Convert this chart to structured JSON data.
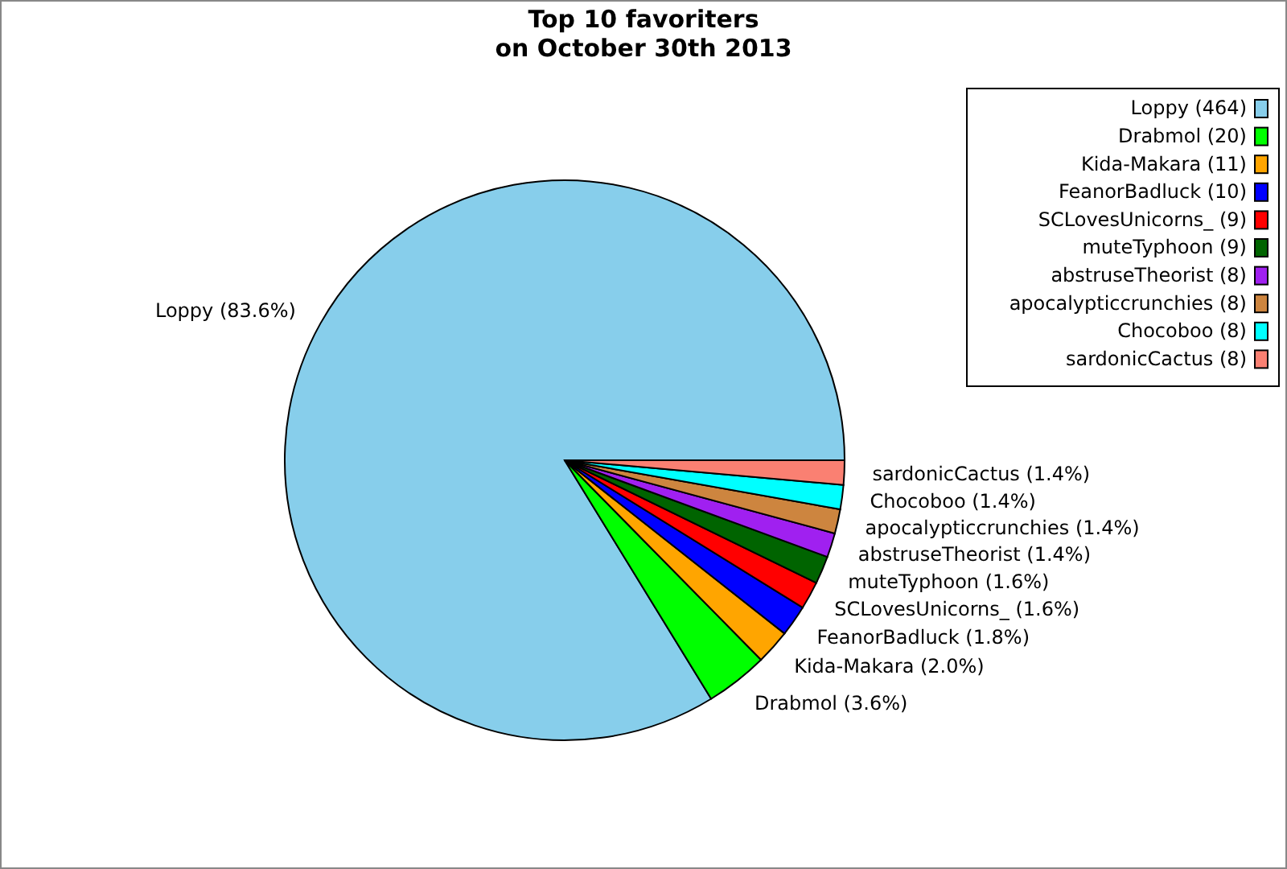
{
  "chart_data": {
    "type": "pie",
    "title": "Top 10 favoriters\non October 30th 2013",
    "categories": [
      "Loppy (464)",
      "Drabmol (20)",
      "Kida-Makara (11)",
      "FeanorBadluck (10)",
      "SCLovesUnicorns_ (9)",
      "muteTyphoon (9)",
      "abstruseTheorist (8)",
      "apocalypticcrunchies (8)",
      "Chocoboo (8)",
      "sardonicCactus (8)"
    ],
    "values": [
      83.6,
      3.6,
      2.0,
      1.8,
      1.6,
      1.6,
      1.4,
      1.4,
      1.4,
      1.4
    ],
    "value_labels": [
      "Loppy (83.6%)",
      "Drabmol (3.6%)",
      "Kida-Makara (2.0%)",
      "FeanorBadluck (1.8%)",
      "SCLovesUnicorns_ (1.6%)",
      "muteTyphoon (1.6%)",
      "abstruseTheorist (1.4%)",
      "apocalypticcrunchies (1.4%)",
      "Chocoboo (1.4%)",
      "sardonicCactus (1.4%)"
    ],
    "colors": [
      "#87ceeb",
      "#00ff00",
      "#ffa500",
      "#0000ff",
      "#ff0000",
      "#006400",
      "#a020f0",
      "#cd853f",
      "#00ffff",
      "#fa8072"
    ],
    "legend": "top right"
  }
}
